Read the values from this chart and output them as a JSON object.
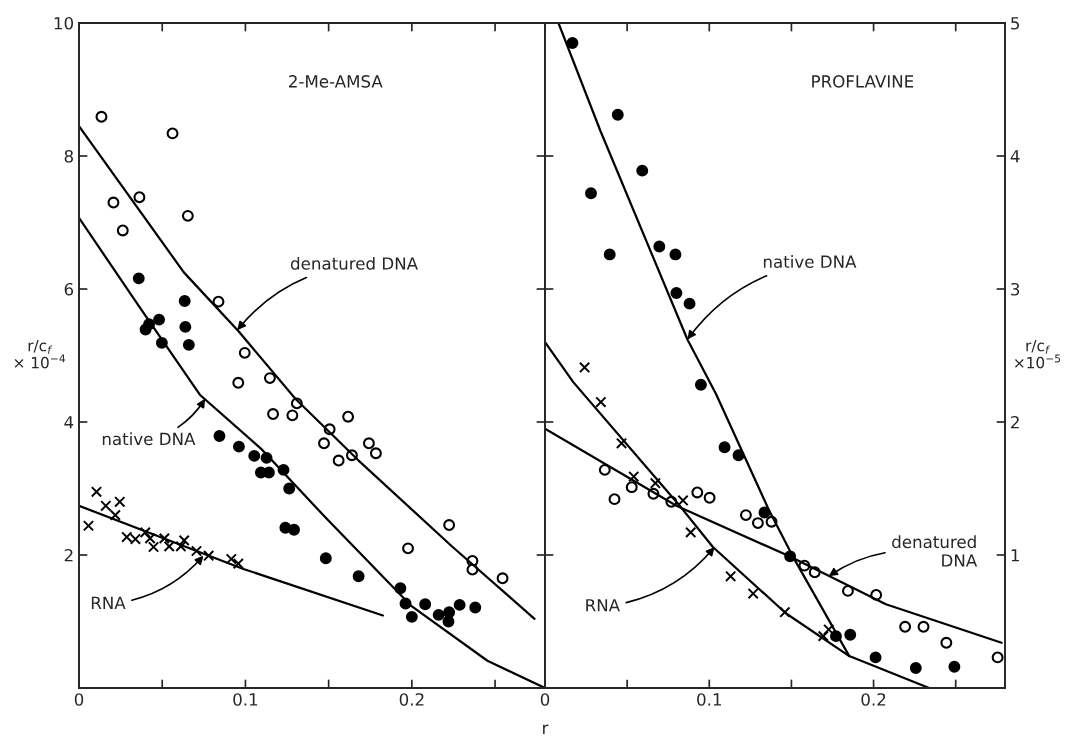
{
  "chart_data": [
    {
      "type": "scatter",
      "title": "2-Me-AMSA",
      "xlabel": "r",
      "ylabel": "r/c$_{f}$\n× 10$^{−4}$",
      "xlim": [
        0,
        0.28
      ],
      "ylim": [
        0,
        10
      ],
      "xticks": [
        0,
        {
          "value": 0.05,
          "label": null
        },
        0.1,
        {
          "value": 0.15,
          "label": null
        },
        0.2,
        {
          "value": 0.25,
          "label": null
        }
      ],
      "yticks": [
        2,
        4,
        6,
        8,
        10
      ],
      "series": [
        {
          "marker": "circle",
          "color": "#ffffff",
          "x": [
            0.0135,
            0.0207,
            0.0263,
            0.0363,
            0.0562,
            0.0654,
            0.0838,
            0.0996,
            0.0957,
            0.1147,
            0.1166,
            0.1282,
            0.1309,
            0.1617,
            0.1506,
            0.1472,
            0.156,
            0.164,
            0.1742,
            0.1784,
            0.2224,
            0.1977,
            0.2364,
            0.2364,
            0.2545
          ],
          "values": [
            8.59,
            7.3,
            6.88,
            7.38,
            8.34,
            7.1,
            5.81,
            5.04,
            4.59,
            4.66,
            4.12,
            4.1,
            4.28,
            4.08,
            3.89,
            3.68,
            3.42,
            3.5,
            3.68,
            3.53,
            2.45,
            2.1,
            1.91,
            1.78,
            1.65
          ]
        },
        {
          "marker": "circle",
          "color": "#000000",
          "x": [
            0.0359,
            0.0635,
            0.0481,
            0.0421,
            0.04,
            0.0498,
            0.0639,
            0.066,
            0.0844,
            0.0961,
            0.1053,
            0.1127,
            0.1093,
            0.1141,
            0.1229,
            0.1263,
            0.124,
            0.1292,
            0.1483,
            0.168,
            0.1931,
            0.1962,
            0.2,
            0.208,
            0.2161,
            0.2224,
            0.222,
            0.2287,
            0.2381
          ],
          "values": [
            6.16,
            5.82,
            5.54,
            5.47,
            5.39,
            5.19,
            5.43,
            5.16,
            3.79,
            3.63,
            3.49,
            3.46,
            3.24,
            3.24,
            3.28,
            3.0,
            2.41,
            2.38,
            1.95,
            1.68,
            1.5,
            1.27,
            1.07,
            1.26,
            1.1,
            1.14,
            1.0,
            1.25,
            1.21
          ]
        },
        {
          "marker": "cross",
          "color": "#000000",
          "x": [
            0.0057,
            0.0105,
            0.0161,
            0.0218,
            0.0245,
            0.0287,
            0.0339,
            0.0398,
            0.0427,
            0.0448,
            0.0513,
            0.0542,
            0.0612,
            0.0632,
            0.0706,
            0.0779,
            0.0915,
            0.0957
          ],
          "values": [
            2.44,
            2.95,
            2.74,
            2.6,
            2.8,
            2.27,
            2.24,
            2.34,
            2.25,
            2.12,
            2.25,
            2.13,
            2.13,
            2.22,
            2.06,
            1.99,
            1.94,
            1.87
          ]
        },
        {
          "type": "line",
          "marker": "none",
          "color": "#000000",
          "x": [
            0,
            0.063,
            0.096,
            0.13,
            0.168,
            0.2245,
            0.2737
          ],
          "values": [
            8.45,
            6.25,
            5.36,
            4.35,
            3.42,
            2.12,
            1.04
          ]
        },
        {
          "type": "line",
          "marker": "none",
          "color": "#000000",
          "x": [
            0,
            0.0363,
            0.0726,
            0.1093,
            0.149,
            0.1994,
            0.2454,
            0.28
          ],
          "values": [
            7.07,
            5.73,
            4.41,
            3.6,
            2.54,
            1.24,
            0.41,
            0
          ]
        },
        {
          "type": "line",
          "marker": "none",
          "color": "#000000",
          "x": [
            0,
            0.0988,
            0.1826
          ],
          "values": [
            2.74,
            1.79,
            1.09
          ]
        }
      ],
      "annotations": [
        {
          "text": "denatured DNA",
          "x": 0.0951,
          "y": 5.38
        },
        {
          "text": "native DNA",
          "x": 0.0758,
          "y": 4.35
        },
        {
          "text": "RNA",
          "x": 0.0748,
          "y": 1.99
        }
      ]
    },
    {
      "type": "scatter",
      "title": "PROFLAVINE",
      "ylabel": "r/c$_{f}$\n×10$^{−5}$",
      "xlim": [
        0,
        0.28
      ],
      "ylim": [
        0,
        5
      ],
      "xticks": [
        0,
        {
          "value": 0.05,
          "label": null
        },
        0.1,
        {
          "value": 0.15,
          "label": null
        },
        0.2,
        {
          "value": 0.25,
          "label": null
        }
      ],
      "yticks": [
        1,
        2,
        3,
        4,
        5
      ],
      "series": [
        {
          "marker": "circle",
          "color": "#000000",
          "x": [
            0.0167,
            0.0443,
            0.0592,
            0.028,
            0.0394,
            0.0696,
            0.0794,
            0.08,
            0.088,
            0.0949,
            0.1093,
            0.1178,
            0.1336,
            0.1492,
            0.1771,
            0.1858,
            0.2012,
            0.2257,
            0.2492
          ],
          "values": [
            4.85,
            4.31,
            3.89,
            3.72,
            3.26,
            3.32,
            3.26,
            2.97,
            2.89,
            2.28,
            1.81,
            1.75,
            1.32,
            0.99,
            0.39,
            0.4,
            0.23,
            0.15,
            0.16
          ]
        },
        {
          "marker": "circle",
          "color": "#ffffff",
          "x": [
            0.0364,
            0.0423,
            0.0528,
            0.066,
            0.0769,
            0.0927,
            0.1002,
            0.1223,
            0.1296,
            0.1379,
            0.1579,
            0.1642,
            0.1844,
            0.2016,
            0.2192,
            0.2304,
            0.2443,
            0.2755
          ],
          "values": [
            1.64,
            1.42,
            1.51,
            1.46,
            1.4,
            1.47,
            1.43,
            1.3,
            1.24,
            1.25,
            0.92,
            0.87,
            0.73,
            0.7,
            0.46,
            0.46,
            0.34,
            0.23
          ]
        },
        {
          "marker": "cross",
          "color": "#000000",
          "x": [
            0.0241,
            0.034,
            0.0466,
            0.054,
            0.0672,
            0.084,
            0.0887,
            0.113,
            0.1267,
            0.146,
            0.1694,
            0.1727
          ],
          "values": [
            2.41,
            2.15,
            1.84,
            1.59,
            1.54,
            1.41,
            1.17,
            0.84,
            0.71,
            0.57,
            0.39,
            0.44
          ]
        },
        {
          "type": "line",
          "marker": "none",
          "color": "#000000",
          "x": [
            0.0082,
            0.0337,
            0.0867,
            0.1041,
            0.1366,
            0.1508,
            0.1852,
            0.2338
          ],
          "values": [
            5.0,
            4.19,
            2.62,
            2.21,
            1.33,
            0.99,
            0.24,
            0
          ]
        },
        {
          "type": "line",
          "marker": "none",
          "color": "#000000",
          "x": [
            0,
            0.0172,
            0.082,
            0.1022,
            0.1468,
            0.1852
          ],
          "values": [
            2.6,
            2.3,
            1.37,
            1.06,
            0.56,
            0.24
          ]
        },
        {
          "type": "line",
          "marker": "none",
          "color": "#000000",
          "x": [
            0,
            0.08,
            0.1488,
            0.2075,
            0.2779
          ],
          "values": [
            1.95,
            1.37,
            0.99,
            0.63,
            0.34
          ]
        }
      ],
      "annotations": [
        {
          "text": "native DNA",
          "x": 0.0867,
          "y": 2.62
        },
        {
          "text": "RNA",
          "x": 0.1032,
          "y": 1.06
        },
        {
          "text": "denatured\nDNA",
          "x": 0.1727,
          "y": 0.84
        }
      ]
    }
  ]
}
